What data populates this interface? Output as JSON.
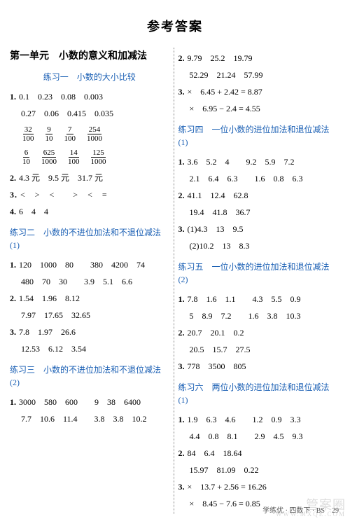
{
  "page_title": "参考答案",
  "left": {
    "unit_title": "第一单元　小数的意义和加减法",
    "p1": {
      "title": "练习一　小数的大小比较",
      "l1": "0.1　0.23　0.08　0.003",
      "l1b": "0.27　0.06　0.415　0.035",
      "frac1": [
        {
          "t": "32",
          "b": "100"
        },
        {
          "t": "9",
          "b": "10"
        },
        {
          "t": "7",
          "b": "100"
        },
        {
          "t": "254",
          "b": "1000"
        }
      ],
      "frac2": [
        {
          "t": "6",
          "b": "10"
        },
        {
          "t": "625",
          "b": "1000"
        },
        {
          "t": "14",
          "b": "100"
        },
        {
          "t": "125",
          "b": "1000"
        }
      ],
      "l2": "4.3 元　9.5 元　31.7 元",
      "l3": "<　>　<　　>　<　=",
      "l4": "6　4　4"
    },
    "p2": {
      "title": "练习二　小数的不进位加法和不退位减法(1)",
      "l1a": "120　1000　80　　380　4200　74",
      "l1b": "480　70　30　　3.9　5.1　6.6",
      "l2a": "1.54　1.96　8.12",
      "l2b": "7.97　17.65　32.65",
      "l3a": "7.8　1.97　26.6",
      "l3b": "12.53　6.12　3.54"
    },
    "p3": {
      "title": "练习三　小数的不进位加法和不退位减法(2)",
      "l1a": "3000　580　600　　9　38　6400",
      "l1b": "7.7　10.6　11.4　　3.8　3.8　10.2"
    }
  },
  "right": {
    "top": {
      "l2a": "9.79　25.2　19.79",
      "l2b": "52.29　21.24　57.99",
      "l3a": "×　6.45 + 2.42 = 8.87",
      "l3b": "×　6.95 − 2.4 = 4.55"
    },
    "p4": {
      "title": "练习四　一位小数的进位加法和退位减法(1)",
      "l1a": "3.6　5.2　4　　9.2　5.9　7.2",
      "l1b": "2.1　6.4　6.3　　1.6　0.8　6.3",
      "l2a": "41.1　12.4　62.8",
      "l2b": "19.4　41.8　36.7",
      "l3a": "(1)4.3　13　9.5",
      "l3b": "(2)10.2　13　8.3"
    },
    "p5": {
      "title": "练习五　一位小数的进位加法和退位减法(2)",
      "l1a": "7.8　1.6　1.1　　4.3　5.5　0.9",
      "l1b": "5　8.9　7.2　　1.6　3.8　10.3",
      "l2a": "20.7　20.1　0.2",
      "l2b": "20.5　15.7　27.5",
      "l3": "778　3500　805"
    },
    "p6": {
      "title": "练习六　两位小数的进位加法和退位减法(1)",
      "l1a": "1.9　6.3　4.6　　1.2　0.9　3.3",
      "l1b": "4.4　0.8　8.1　　2.9　4.5　9.3",
      "l2a": "84　6.4　18.64",
      "l2b": "15.97　81.09　0.22",
      "l3a": "×　13.7 + 2.56 = 16.26",
      "l3b": "×　8.45 − 7.6 = 0.85"
    }
  },
  "footer": "学练优 · 四数下 · BS　29",
  "watermark": "管案圈",
  "watermark_sub": "WWW.MXQE.COM"
}
